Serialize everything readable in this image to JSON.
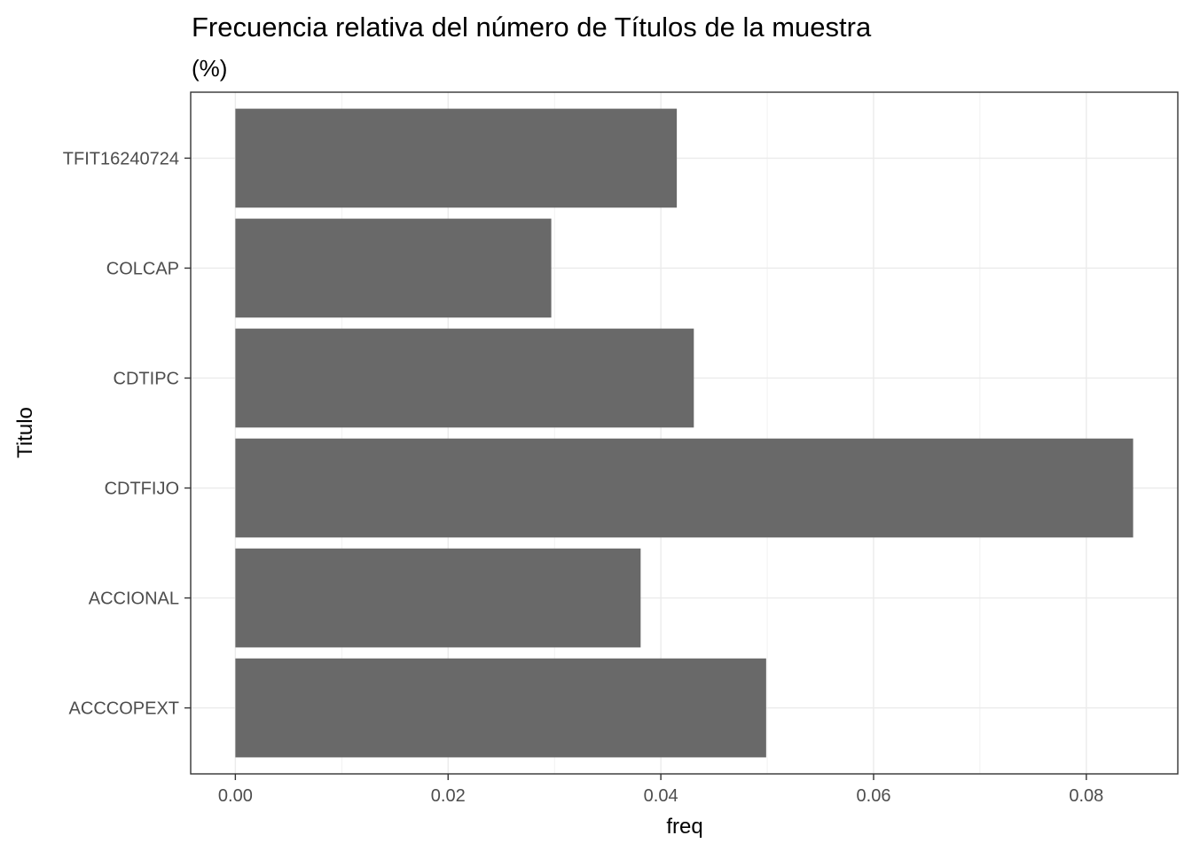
{
  "chart_data": {
    "type": "bar",
    "orientation": "horizontal",
    "title": "Frecuencia relativa del número de Títulos de la muestra",
    "subtitle": "(%)",
    "xlabel": "freq",
    "ylabel": "Titulo",
    "categories": [
      "ACCCOPEXT",
      "ACCIONAL",
      "CDTFIJO",
      "CDTIPC",
      "COLCAP",
      "TFIT16240724"
    ],
    "values": [
      0.0499,
      0.0381,
      0.0844,
      0.0431,
      0.0297,
      0.0415
    ],
    "xlim": [
      -0.0042,
      0.0886
    ],
    "x_ticks": [
      0.0,
      0.02,
      0.04,
      0.06,
      0.08
    ],
    "x_tick_labels": [
      "0.00",
      "0.02",
      "0.04",
      "0.06",
      "0.08"
    ],
    "bar_color": "#696969",
    "grid": true,
    "theme": "bw"
  }
}
